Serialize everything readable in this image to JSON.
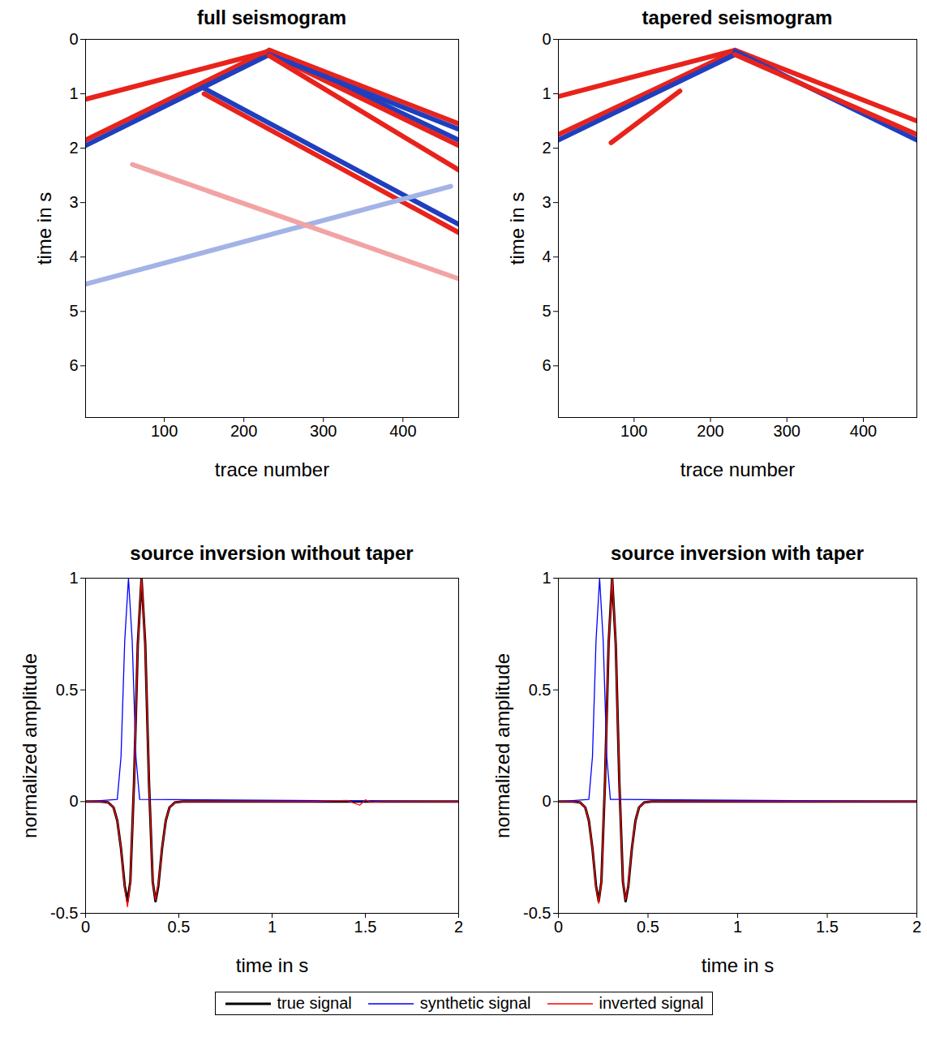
{
  "chart_data": [
    {
      "type": "line",
      "title": "full seismogram",
      "xlabel": "trace number",
      "ylabel": "time in s",
      "xlim": [
        1,
        470
      ],
      "xticks": [
        100,
        200,
        300,
        400
      ],
      "ylim": [
        6.95,
        0
      ],
      "yticks": [
        0,
        1,
        2,
        3,
        4,
        5,
        6
      ],
      "series": [
        {
          "color": "#e8231c",
          "x": [
            1,
            232
          ],
          "values": [
            1.85,
            0.2
          ]
        },
        {
          "color": "#1f3fbf",
          "x": [
            1,
            232
          ],
          "values": [
            1.95,
            0.28
          ]
        },
        {
          "color": "#e8231c",
          "x": [
            1,
            232
          ],
          "values": [
            1.1,
            0.22
          ]
        },
        {
          "color": "#1f3fbf",
          "x": [
            232,
            470
          ],
          "values": [
            0.2,
            1.85
          ]
        },
        {
          "color": "#e8231c",
          "x": [
            232,
            470
          ],
          "values": [
            0.26,
            1.95
          ]
        },
        {
          "color": "#e8231c",
          "x": [
            232,
            470
          ],
          "values": [
            0.2,
            1.55
          ]
        },
        {
          "color": "#1f3fbf",
          "x": [
            232,
            470
          ],
          "values": [
            0.28,
            1.65
          ]
        },
        {
          "color": "#e8231c",
          "x": [
            232,
            470
          ],
          "values": [
            0.3,
            2.4
          ]
        },
        {
          "color": "#1f3fbf",
          "x": [
            150,
            470
          ],
          "values": [
            0.9,
            3.4
          ]
        },
        {
          "color": "#e8231c",
          "x": [
            150,
            470
          ],
          "values": [
            1.0,
            3.55
          ]
        },
        {
          "color": "#a3b3e6",
          "x": [
            1,
            460
          ],
          "values": [
            4.5,
            2.7
          ]
        },
        {
          "color": "#f2a3a3",
          "x": [
            60,
            470
          ],
          "values": [
            2.3,
            4.4
          ]
        }
      ]
    },
    {
      "type": "line",
      "title": "tapered seismogram",
      "xlabel": "trace number",
      "ylabel": "time in s",
      "xlim": [
        1,
        470
      ],
      "xticks": [
        100,
        200,
        300,
        400
      ],
      "ylim": [
        6.95,
        0
      ],
      "yticks": [
        0,
        1,
        2,
        3,
        4,
        5,
        6
      ],
      "series": [
        {
          "color": "#e8231c",
          "x": [
            1,
            232
          ],
          "values": [
            1.05,
            0.2
          ]
        },
        {
          "color": "#e8231c",
          "x": [
            1,
            232
          ],
          "values": [
            1.75,
            0.22
          ]
        },
        {
          "color": "#1f3fbf",
          "x": [
            1,
            232
          ],
          "values": [
            1.85,
            0.28
          ]
        },
        {
          "color": "#e8231c",
          "x": [
            70,
            160
          ],
          "values": [
            1.9,
            0.95
          ]
        },
        {
          "color": "#e8231c",
          "x": [
            232,
            470
          ],
          "values": [
            0.2,
            1.5
          ]
        },
        {
          "color": "#1f3fbf",
          "x": [
            232,
            470
          ],
          "values": [
            0.22,
            1.85
          ]
        },
        {
          "color": "#e8231c",
          "x": [
            232,
            470
          ],
          "values": [
            0.28,
            1.75
          ]
        }
      ]
    },
    {
      "type": "line",
      "title": "source inversion without taper",
      "xlabel": "time in s",
      "ylabel": "normalized amplitude",
      "xlim": [
        0,
        2
      ],
      "xticks": [
        0,
        0.5,
        1,
        1.5,
        2
      ],
      "ylim": [
        -0.5,
        1
      ],
      "yticks": [
        -0.5,
        0,
        0.5,
        1
      ],
      "legend": "bottom",
      "series": [
        {
          "name": "true signal",
          "color": "#000000",
          "x": [
            0,
            0.08,
            0.12,
            0.15,
            0.17,
            0.19,
            0.21,
            0.225,
            0.24,
            0.26,
            0.28,
            0.3,
            0.32,
            0.34,
            0.36,
            0.375,
            0.39,
            0.41,
            0.43,
            0.45,
            0.48,
            0.52,
            2
          ],
          "values": [
            0,
            0,
            -0.003,
            -0.026,
            -0.085,
            -0.21,
            -0.378,
            -0.446,
            -0.357,
            0.088,
            0.704,
            1,
            0.704,
            0.088,
            -0.357,
            -0.446,
            -0.378,
            -0.21,
            -0.085,
            -0.026,
            -0.003,
            0,
            0
          ]
        },
        {
          "name": "synthetic signal",
          "color": "#0000ff",
          "x": [
            0,
            0.17,
            0.19,
            0.21,
            0.23,
            0.25,
            0.27,
            0.29,
            2
          ],
          "values": [
            0,
            0.01,
            0.2,
            0.72,
            1,
            0.72,
            0.2,
            0.01,
            0
          ]
        },
        {
          "name": "inverted signal",
          "color": "#ff0000",
          "x": [
            0,
            0.08,
            0.12,
            0.15,
            0.17,
            0.19,
            0.21,
            0.225,
            0.24,
            0.26,
            0.28,
            0.3,
            0.32,
            0.34,
            0.36,
            0.375,
            0.39,
            0.41,
            0.43,
            0.45,
            0.48,
            0.52,
            1.2,
            1.4,
            1.43,
            1.47,
            1.5,
            1.53,
            1.6,
            2
          ],
          "values": [
            0,
            0,
            -0.003,
            -0.026,
            -0.085,
            -0.21,
            -0.39,
            -0.47,
            -0.36,
            0.09,
            0.7,
            1,
            0.7,
            0.09,
            -0.357,
            -0.44,
            -0.37,
            -0.21,
            -0.085,
            -0.026,
            -0.003,
            0,
            0,
            0.005,
            -0.004,
            -0.016,
            0.008,
            -0.003,
            0,
            0
          ]
        }
      ]
    },
    {
      "type": "line",
      "title": "source inversion with taper",
      "xlabel": "time in s",
      "ylabel": "normalized amplitude",
      "xlim": [
        0,
        2
      ],
      "xticks": [
        0,
        0.5,
        1,
        1.5,
        2
      ],
      "ylim": [
        -0.5,
        1
      ],
      "yticks": [
        -0.5,
        0,
        0.5,
        1
      ],
      "legend": "bottom",
      "series": [
        {
          "name": "true signal",
          "color": "#000000",
          "x": [
            0,
            0.08,
            0.12,
            0.15,
            0.17,
            0.19,
            0.21,
            0.225,
            0.24,
            0.26,
            0.28,
            0.3,
            0.32,
            0.34,
            0.36,
            0.375,
            0.39,
            0.41,
            0.43,
            0.45,
            0.48,
            0.52,
            2
          ],
          "values": [
            0,
            0,
            -0.003,
            -0.026,
            -0.085,
            -0.21,
            -0.378,
            -0.446,
            -0.357,
            0.088,
            0.704,
            1,
            0.704,
            0.088,
            -0.357,
            -0.446,
            -0.378,
            -0.21,
            -0.085,
            -0.026,
            -0.003,
            0,
            0
          ]
        },
        {
          "name": "synthetic signal",
          "color": "#0000ff",
          "x": [
            0,
            0.17,
            0.19,
            0.21,
            0.23,
            0.25,
            0.27,
            0.29,
            2
          ],
          "values": [
            0,
            0.01,
            0.2,
            0.72,
            1,
            0.72,
            0.2,
            0.01,
            0
          ]
        },
        {
          "name": "inverted signal",
          "color": "#ff0000",
          "x": [
            0,
            0.08,
            0.12,
            0.15,
            0.17,
            0.19,
            0.21,
            0.225,
            0.24,
            0.26,
            0.28,
            0.3,
            0.32,
            0.34,
            0.36,
            0.375,
            0.39,
            0.41,
            0.43,
            0.45,
            0.48,
            0.52,
            2
          ],
          "values": [
            0,
            0,
            -0.003,
            -0.026,
            -0.085,
            -0.21,
            -0.385,
            -0.455,
            -0.36,
            0.09,
            0.7,
            1,
            0.7,
            0.09,
            -0.357,
            -0.44,
            -0.372,
            -0.21,
            -0.085,
            -0.026,
            -0.003,
            0,
            0
          ]
        }
      ]
    }
  ]
}
